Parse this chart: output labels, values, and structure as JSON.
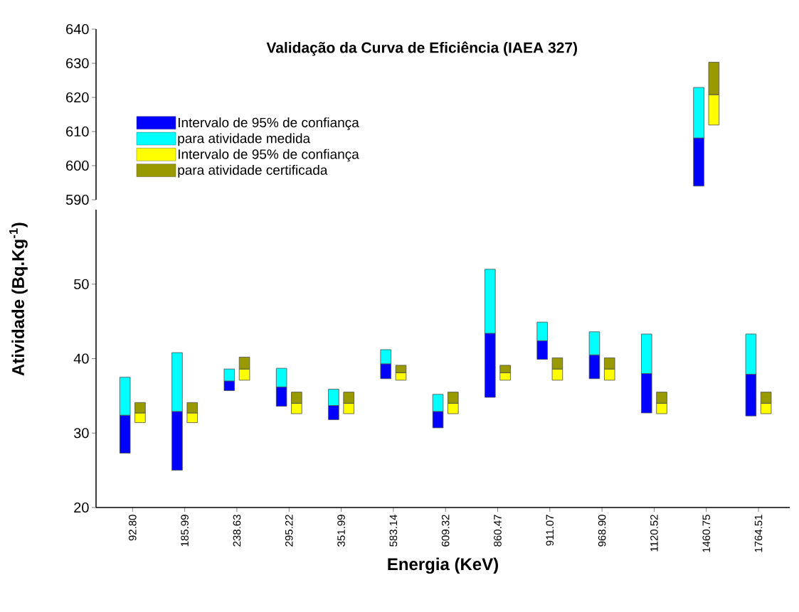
{
  "chart_data": [
    {
      "type": "bar",
      "title": "Validação da Curva de Eficiência (IAEA 327)",
      "categories": [
        "92.80",
        "185.99",
        "238.63",
        "295.22",
        "351.99",
        "583.14",
        "609.32",
        "860.47",
        "911.07",
        "968.90",
        "1120.52",
        "1460.75",
        "1764.51"
      ],
      "ylim": [
        590,
        640
      ],
      "yticks": [
        590,
        600,
        610,
        620,
        630,
        640
      ],
      "tick_labels": "y",
      "legend": "left",
      "series": [
        {
          "name": "Intervalo de 95% de confiança",
          "color": "#0000ff",
          "base": [
            null,
            null,
            null,
            null,
            null,
            null,
            null,
            null,
            null,
            null,
            null,
            594.0,
            null
          ],
          "values": [
            null,
            null,
            null,
            null,
            null,
            null,
            null,
            null,
            null,
            null,
            null,
            14.1,
            null
          ]
        },
        {
          "name": "para atividade medida",
          "color": "#00ffff",
          "base": [
            null,
            null,
            null,
            null,
            null,
            null,
            null,
            null,
            null,
            null,
            null,
            608.1,
            null
          ],
          "values": [
            null,
            null,
            null,
            null,
            null,
            null,
            null,
            null,
            null,
            null,
            null,
            14.8,
            null
          ]
        },
        {
          "name": "Intervalo de 95% de confiança",
          "color": "#ffff00",
          "base": [
            null,
            null,
            null,
            null,
            null,
            null,
            null,
            null,
            null,
            null,
            null,
            611.9,
            null
          ],
          "values": [
            null,
            null,
            null,
            null,
            null,
            null,
            null,
            null,
            null,
            null,
            null,
            8.9,
            null
          ]
        },
        {
          "name": "para atividade certificada",
          "color": "#999900",
          "base": [
            null,
            null,
            null,
            null,
            null,
            null,
            null,
            null,
            null,
            null,
            null,
            620.8,
            null
          ],
          "values": [
            null,
            null,
            null,
            null,
            null,
            null,
            null,
            null,
            null,
            null,
            null,
            9.5,
            null
          ]
        }
      ]
    },
    {
      "type": "bar",
      "xlabel": "Energia (KeV)",
      "ylabel": "Atividade (Bq.Kg$^{-1}$)",
      "categories": [
        "92.80",
        "185.99",
        "238.63",
        "295.22",
        "351.99",
        "583.14",
        "609.32",
        "860.47",
        "911.07",
        "968.90",
        "1120.52",
        "1460.75",
        "1764.51"
      ],
      "ylim": [
        20,
        60
      ],
      "yticks": [
        20,
        30,
        40,
        50
      ],
      "series": [
        {
          "color": "#0000ff",
          "base": [
            27.3,
            25.0,
            35.7,
            33.6,
            31.8,
            37.3,
            30.7,
            34.8,
            39.9,
            37.3,
            32.7,
            null,
            32.3
          ],
          "values": [
            5.1,
            7.9,
            1.3,
            2.6,
            1.9,
            2.0,
            2.2,
            8.6,
            2.5,
            3.2,
            5.3,
            null,
            5.6
          ]
        },
        {
          "color": "#00ffff",
          "base": [
            32.4,
            32.9,
            37.0,
            36.2,
            33.7,
            39.3,
            32.9,
            43.4,
            42.4,
            40.5,
            38.0,
            null,
            37.9
          ],
          "values": [
            5.1,
            7.9,
            1.6,
            2.5,
            2.2,
            1.9,
            2.3,
            8.6,
            2.5,
            3.1,
            5.3,
            null,
            5.4
          ]
        },
        {
          "color": "#ffff00",
          "base": [
            31.4,
            31.4,
            37.1,
            32.6,
            32.6,
            37.1,
            32.6,
            37.1,
            37.1,
            37.1,
            32.6,
            null,
            32.6
          ],
          "values": [
            1.3,
            1.3,
            1.5,
            1.4,
            1.4,
            1.0,
            1.4,
            1.0,
            1.5,
            1.5,
            1.4,
            null,
            1.4
          ]
        },
        {
          "color": "#999900",
          "base": [
            32.7,
            32.7,
            38.6,
            34.0,
            34.0,
            38.1,
            34.0,
            38.1,
            38.6,
            38.6,
            34.0,
            null,
            34.0
          ],
          "values": [
            1.4,
            1.4,
            1.6,
            1.5,
            1.5,
            1.0,
            1.5,
            1.0,
            1.5,
            1.5,
            1.5,
            null,
            1.5
          ]
        }
      ]
    }
  ]
}
